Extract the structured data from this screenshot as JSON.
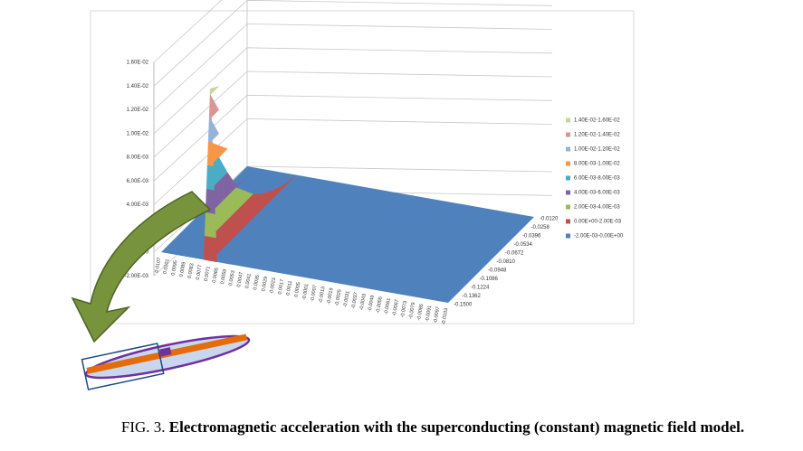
{
  "chart_data": {
    "type": "surface3d",
    "zlim": [
      -0.002,
      0.016
    ],
    "zticks": [
      {
        "value": 0.016,
        "label": "1.60E-02"
      },
      {
        "value": 0.014,
        "label": "1.40E-02"
      },
      {
        "value": 0.012,
        "label": "1.20E-02"
      },
      {
        "value": 0.01,
        "label": "1.00E-02"
      },
      {
        "value": 0.008,
        "label": "8.00E-03"
      },
      {
        "value": 0.006,
        "label": "6.00E-03"
      },
      {
        "value": 0.004,
        "label": "4.00E-03"
      },
      {
        "value": 0,
        "label": "0.00E+00"
      },
      {
        "value": -0.002,
        "label": "-2.00E-03"
      }
    ],
    "categories": [
      "0.0107",
      "0.0101",
      "0.0095",
      "0.0089",
      "0.0083",
      "0.0077",
      "0.0071",
      "0.0065",
      "0.0059",
      "0.0053",
      "0.0047",
      "0.0041",
      "0.0035",
      "0.0029",
      "0.0023",
      "0.0017",
      "0.0011",
      "0.0005",
      "-0.0001",
      "-0.0007",
      "-0.0013",
      "-0.0019",
      "-0.0025",
      "-0.0031",
      "-0.0037",
      "-0.0043",
      "-0.0049",
      "-0.0055",
      "-0.0061",
      "-0.0067",
      "-0.0073",
      "-0.0079",
      "-0.0085",
      "-0.0091",
      "-0.0097",
      "-0.0103"
    ],
    "depth": [
      "-0.0120",
      "-0.0258",
      "-0.0396",
      "-0.0534",
      "-0.0672",
      "-0.0810",
      "-0.0948",
      "-0.1086",
      "-0.1224",
      "-0.1362",
      "-0.1500"
    ],
    "ridge": {
      "x": "0.0071",
      "values": [
        0,
        0.0001,
        0.0004,
        0.0008,
        0.0013,
        0.002,
        0.003,
        0.0042,
        0.006,
        0.009,
        0.0145
      ]
    },
    "series": [
      {
        "name": "1.40E-02-1.60E-02",
        "color": "#c3d69b",
        "range": [
          0.014,
          0.016
        ]
      },
      {
        "name": "1.20E-02-1.40E-02",
        "color": "#d99694",
        "range": [
          0.012,
          0.014
        ]
      },
      {
        "name": "1.00E-02-1.20E-02",
        "color": "#95b3d7",
        "range": [
          0.01,
          0.012
        ]
      },
      {
        "name": "8.00E-03-1.00E-02",
        "color": "#f79646",
        "range": [
          0.008,
          0.01
        ]
      },
      {
        "name": "6.00E-03-8.00E-03",
        "color": "#4bacc6",
        "range": [
          0.006,
          0.008
        ]
      },
      {
        "name": "4.00E-03-6.00E-03",
        "color": "#8064a2",
        "range": [
          0.004,
          0.006
        ]
      },
      {
        "name": "2.00E-03-4.00E-03",
        "color": "#9bbb59",
        "range": [
          0.002,
          0.004
        ]
      },
      {
        "name": "0.00E+00-2.00E-03",
        "color": "#c0504d",
        "range": [
          0,
          0.002
        ]
      },
      {
        "name": "-2.00E-03-0.00E+00",
        "color": "#4f81bd",
        "range": [
          -0.002,
          0
        ]
      }
    ]
  },
  "caption": {
    "label": "FIG. 3.",
    "text": "Electromagnetic acceleration with the superconducting (constant) magnetic field model."
  }
}
